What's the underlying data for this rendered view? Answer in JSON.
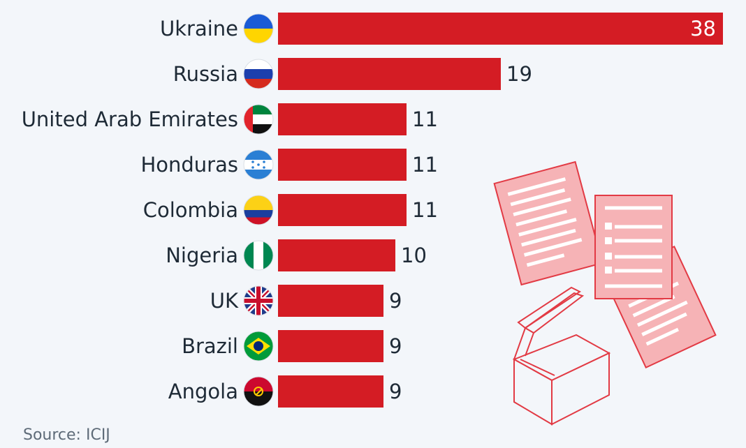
{
  "chart_data": {
    "type": "bar",
    "orientation": "horizontal",
    "categories": [
      "Ukraine",
      "Russia",
      "United Arab Emirates",
      "Honduras",
      "Colombia",
      "Nigeria",
      "UK",
      "Brazil",
      "Angola"
    ],
    "values": [
      38,
      19,
      11,
      11,
      11,
      10,
      9,
      9,
      9
    ],
    "title": "",
    "xlabel": "",
    "ylabel": "",
    "xlim": [
      0,
      38
    ],
    "grid": false,
    "legend": "none",
    "data_labels": true,
    "flag_icons": [
      "ukraine-flag-icon",
      "russia-flag-icon",
      "uae-flag-icon",
      "honduras-flag-icon",
      "colombia-flag-icon",
      "nigeria-flag-icon",
      "uk-flag-icon",
      "brazil-flag-icon",
      "angola-flag-icon"
    ]
  },
  "colors": {
    "bar": "#d41c24",
    "background": "#f3f6fa",
    "illustration": "#e23a44",
    "illustration_fill": "#f6b3b6"
  },
  "source": "Source: ICIJ"
}
